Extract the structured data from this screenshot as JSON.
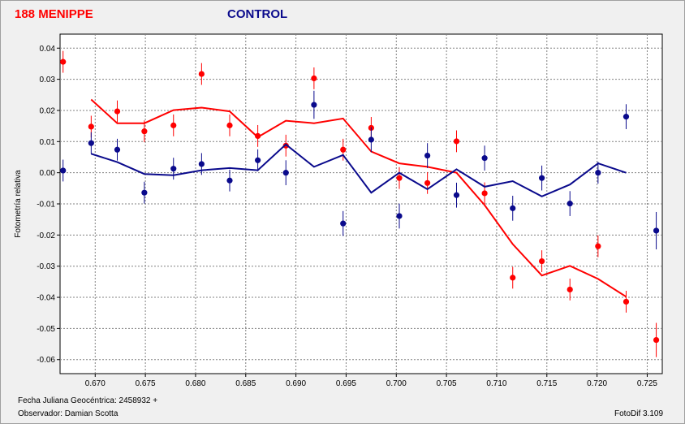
{
  "header": {
    "object_title": "188 MENIPPE",
    "control_title": "CONTROL"
  },
  "footer": {
    "date_label": "Fecha Juliana Geocéntrica: 2458932 +",
    "observer_label": "Observador: Damian Scotta",
    "software_label": "FotoDif 3.109"
  },
  "colors": {
    "object": "#ff0000",
    "control": "#0a0a8c",
    "background": "#f0f0f0",
    "grid": "#808080"
  },
  "chart_data": {
    "type": "scatter",
    "ylabel": "Fotometría relativa",
    "xlim": [
      0.6665,
      0.7265
    ],
    "ylim": [
      0.0445,
      -0.0645
    ],
    "y_inverted": true,
    "grid": true,
    "x_ticks": [
      "0.670",
      "0.675",
      "0.680",
      "0.685",
      "0.690",
      "0.695",
      "0.700",
      "0.705",
      "0.710",
      "0.715",
      "0.720",
      "0.725"
    ],
    "x_tick_values": [
      0.67,
      0.675,
      0.68,
      0.685,
      0.69,
      0.695,
      0.7,
      0.705,
      0.71,
      0.715,
      0.72,
      0.725
    ],
    "y_ticks": [
      "-0.06",
      "-0.05",
      "-0.04",
      "-0.03",
      "-0.02",
      "-0.01",
      "0.00",
      "0.01",
      "0.02",
      "0.03",
      "0.04"
    ],
    "y_tick_values": [
      -0.06,
      -0.05,
      -0.04,
      -0.03,
      -0.02,
      -0.01,
      0.0,
      0.01,
      0.02,
      0.03,
      0.04
    ],
    "series": [
      {
        "role": "object",
        "x": [
          0.6668,
          0.6696,
          0.6722,
          0.6749,
          0.6778,
          0.6806,
          0.6834,
          0.6862,
          0.689,
          0.6918,
          0.6947,
          0.6975,
          0.7003,
          0.7031,
          0.706,
          0.7088,
          0.7116,
          0.7145,
          0.7173,
          0.7201,
          0.7229,
          0.7259
        ],
        "y": [
          0.0356,
          0.0148,
          0.0197,
          0.0133,
          0.0152,
          0.0317,
          0.0152,
          0.0118,
          0.0087,
          0.0303,
          0.0074,
          0.0144,
          -0.0017,
          -0.0033,
          0.0101,
          -0.0066,
          -0.0337,
          -0.0284,
          -0.0375,
          -0.0236,
          -0.0414,
          -0.0537
        ],
        "err": [
          0.0035,
          0.0035,
          0.0035,
          0.0035,
          0.0035,
          0.0035,
          0.0035,
          0.0035,
          0.0035,
          0.0035,
          0.0035,
          0.0035,
          0.0035,
          0.0035,
          0.0035,
          0.0035,
          0.0035,
          0.0035,
          0.0035,
          0.0035,
          0.0035,
          0.0055
        ],
        "line_x": [
          0.6696,
          0.6722,
          0.6749,
          0.6778,
          0.6806,
          0.6834,
          0.6862,
          0.689,
          0.6918,
          0.6947,
          0.6975,
          0.7003,
          0.7031,
          0.706,
          0.7088,
          0.7116,
          0.7145,
          0.7173,
          0.7201,
          0.7229
        ],
        "line_y": [
          0.0235,
          0.0159,
          0.0159,
          0.0201,
          0.0209,
          0.0197,
          0.0114,
          0.0167,
          0.0159,
          0.0174,
          0.0068,
          0.003,
          0.0019,
          0.0,
          -0.0104,
          -0.0229,
          -0.033,
          -0.0299,
          -0.0341,
          -0.0398
        ]
      },
      {
        "role": "control",
        "x": [
          0.6668,
          0.6696,
          0.6722,
          0.6749,
          0.6778,
          0.6806,
          0.6834,
          0.6862,
          0.689,
          0.6918,
          0.6947,
          0.6975,
          0.7003,
          0.7031,
          0.706,
          0.7088,
          0.7116,
          0.7145,
          0.7173,
          0.7201,
          0.7229,
          0.7259
        ],
        "y": [
          0.0007,
          0.0095,
          0.0074,
          -0.0064,
          0.0013,
          0.0028,
          -0.0025,
          0.004,
          0.0,
          0.0218,
          -0.0163,
          0.0106,
          -0.0139,
          0.0055,
          -0.0072,
          0.0047,
          -0.0114,
          -0.0017,
          -0.0099,
          0.0,
          0.018,
          -0.0186
        ],
        "err": [
          0.0035,
          0.0035,
          0.0035,
          0.0035,
          0.0035,
          0.0035,
          0.0035,
          0.0035,
          0.004,
          0.0045,
          0.004,
          0.004,
          0.004,
          0.004,
          0.004,
          0.004,
          0.004,
          0.004,
          0.004,
          0.0035,
          0.004,
          0.006
        ],
        "line_x": [
          0.6696,
          0.6722,
          0.6749,
          0.6778,
          0.6806,
          0.6834,
          0.6862,
          0.689,
          0.6918,
          0.6947,
          0.6975,
          0.7003,
          0.7031,
          0.706,
          0.7088,
          0.7116,
          0.7145,
          0.7173,
          0.7201,
          0.7229
        ],
        "line_y": [
          0.0061,
          0.0034,
          -0.0004,
          -0.0008,
          0.0008,
          0.0015,
          0.0008,
          0.0091,
          0.0019,
          0.0057,
          -0.0064,
          0.0,
          -0.0053,
          0.0011,
          -0.0045,
          -0.0027,
          -0.0076,
          -0.0038,
          0.003,
          0.0
        ]
      }
    ]
  }
}
